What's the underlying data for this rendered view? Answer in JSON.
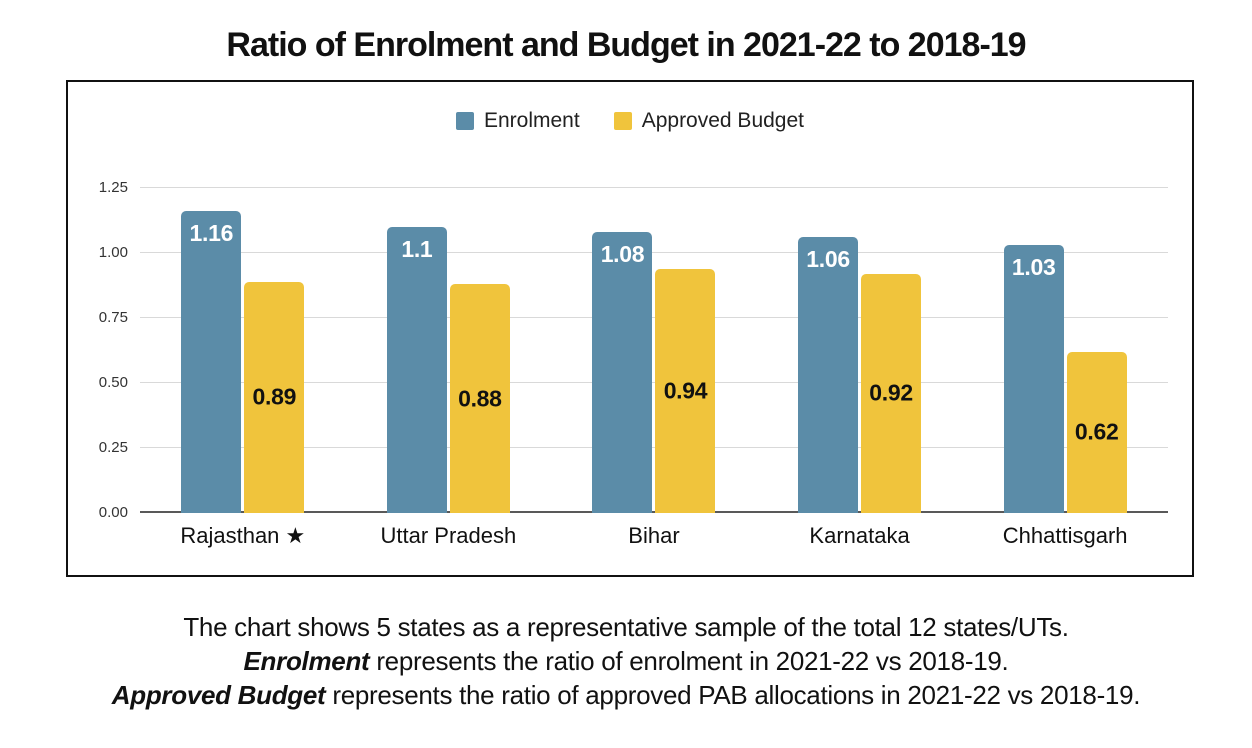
{
  "chart_data": {
    "type": "bar",
    "title": "Ratio of Enrolment and Budget in 2021-22 to 2018-19",
    "categories": [
      "Rajasthan ★",
      "Uttar Pradesh",
      "Bihar",
      "Karnataka",
      "Chhattisgarh"
    ],
    "series": [
      {
        "name": "Enrolment",
        "color": "#5B8CA8",
        "label_color": "#FFFFFF",
        "label_position": "top",
        "values": [
          1.16,
          1.1,
          1.08,
          1.06,
          1.03
        ]
      },
      {
        "name": "Approved Budget",
        "color": "#F0C43C",
        "label_color": "#111111",
        "label_position": "center",
        "values": [
          0.89,
          0.88,
          0.94,
          0.92,
          0.62
        ]
      }
    ],
    "xlabel": "",
    "ylabel": "",
    "ylim": [
      0,
      1.25
    ],
    "y_ticks": [
      "0.00",
      "0.25",
      "0.50",
      "0.75",
      "1.00",
      "1.25"
    ],
    "grid": true,
    "legend_position": "top-center"
  },
  "caption": {
    "line1": "The chart shows 5 states as a representative sample of the total 12 states/UTs.",
    "line2_emphasis": "Enrolment",
    "line2_rest": " represents the ratio of enrolment in 2021-22 vs 2018-19.",
    "line3_emphasis": "Approved Budget",
    "line3_rest": " represents the ratio of approved PAB allocations in 2021-22 vs 2018-19."
  },
  "colors": {
    "enrolment_blue": "#5B8CA8",
    "budget_yellow": "#F0C43C",
    "gridline": "#D9D9D9",
    "baseline": "#595959",
    "frame_border": "#111111",
    "text": "#111111"
  }
}
